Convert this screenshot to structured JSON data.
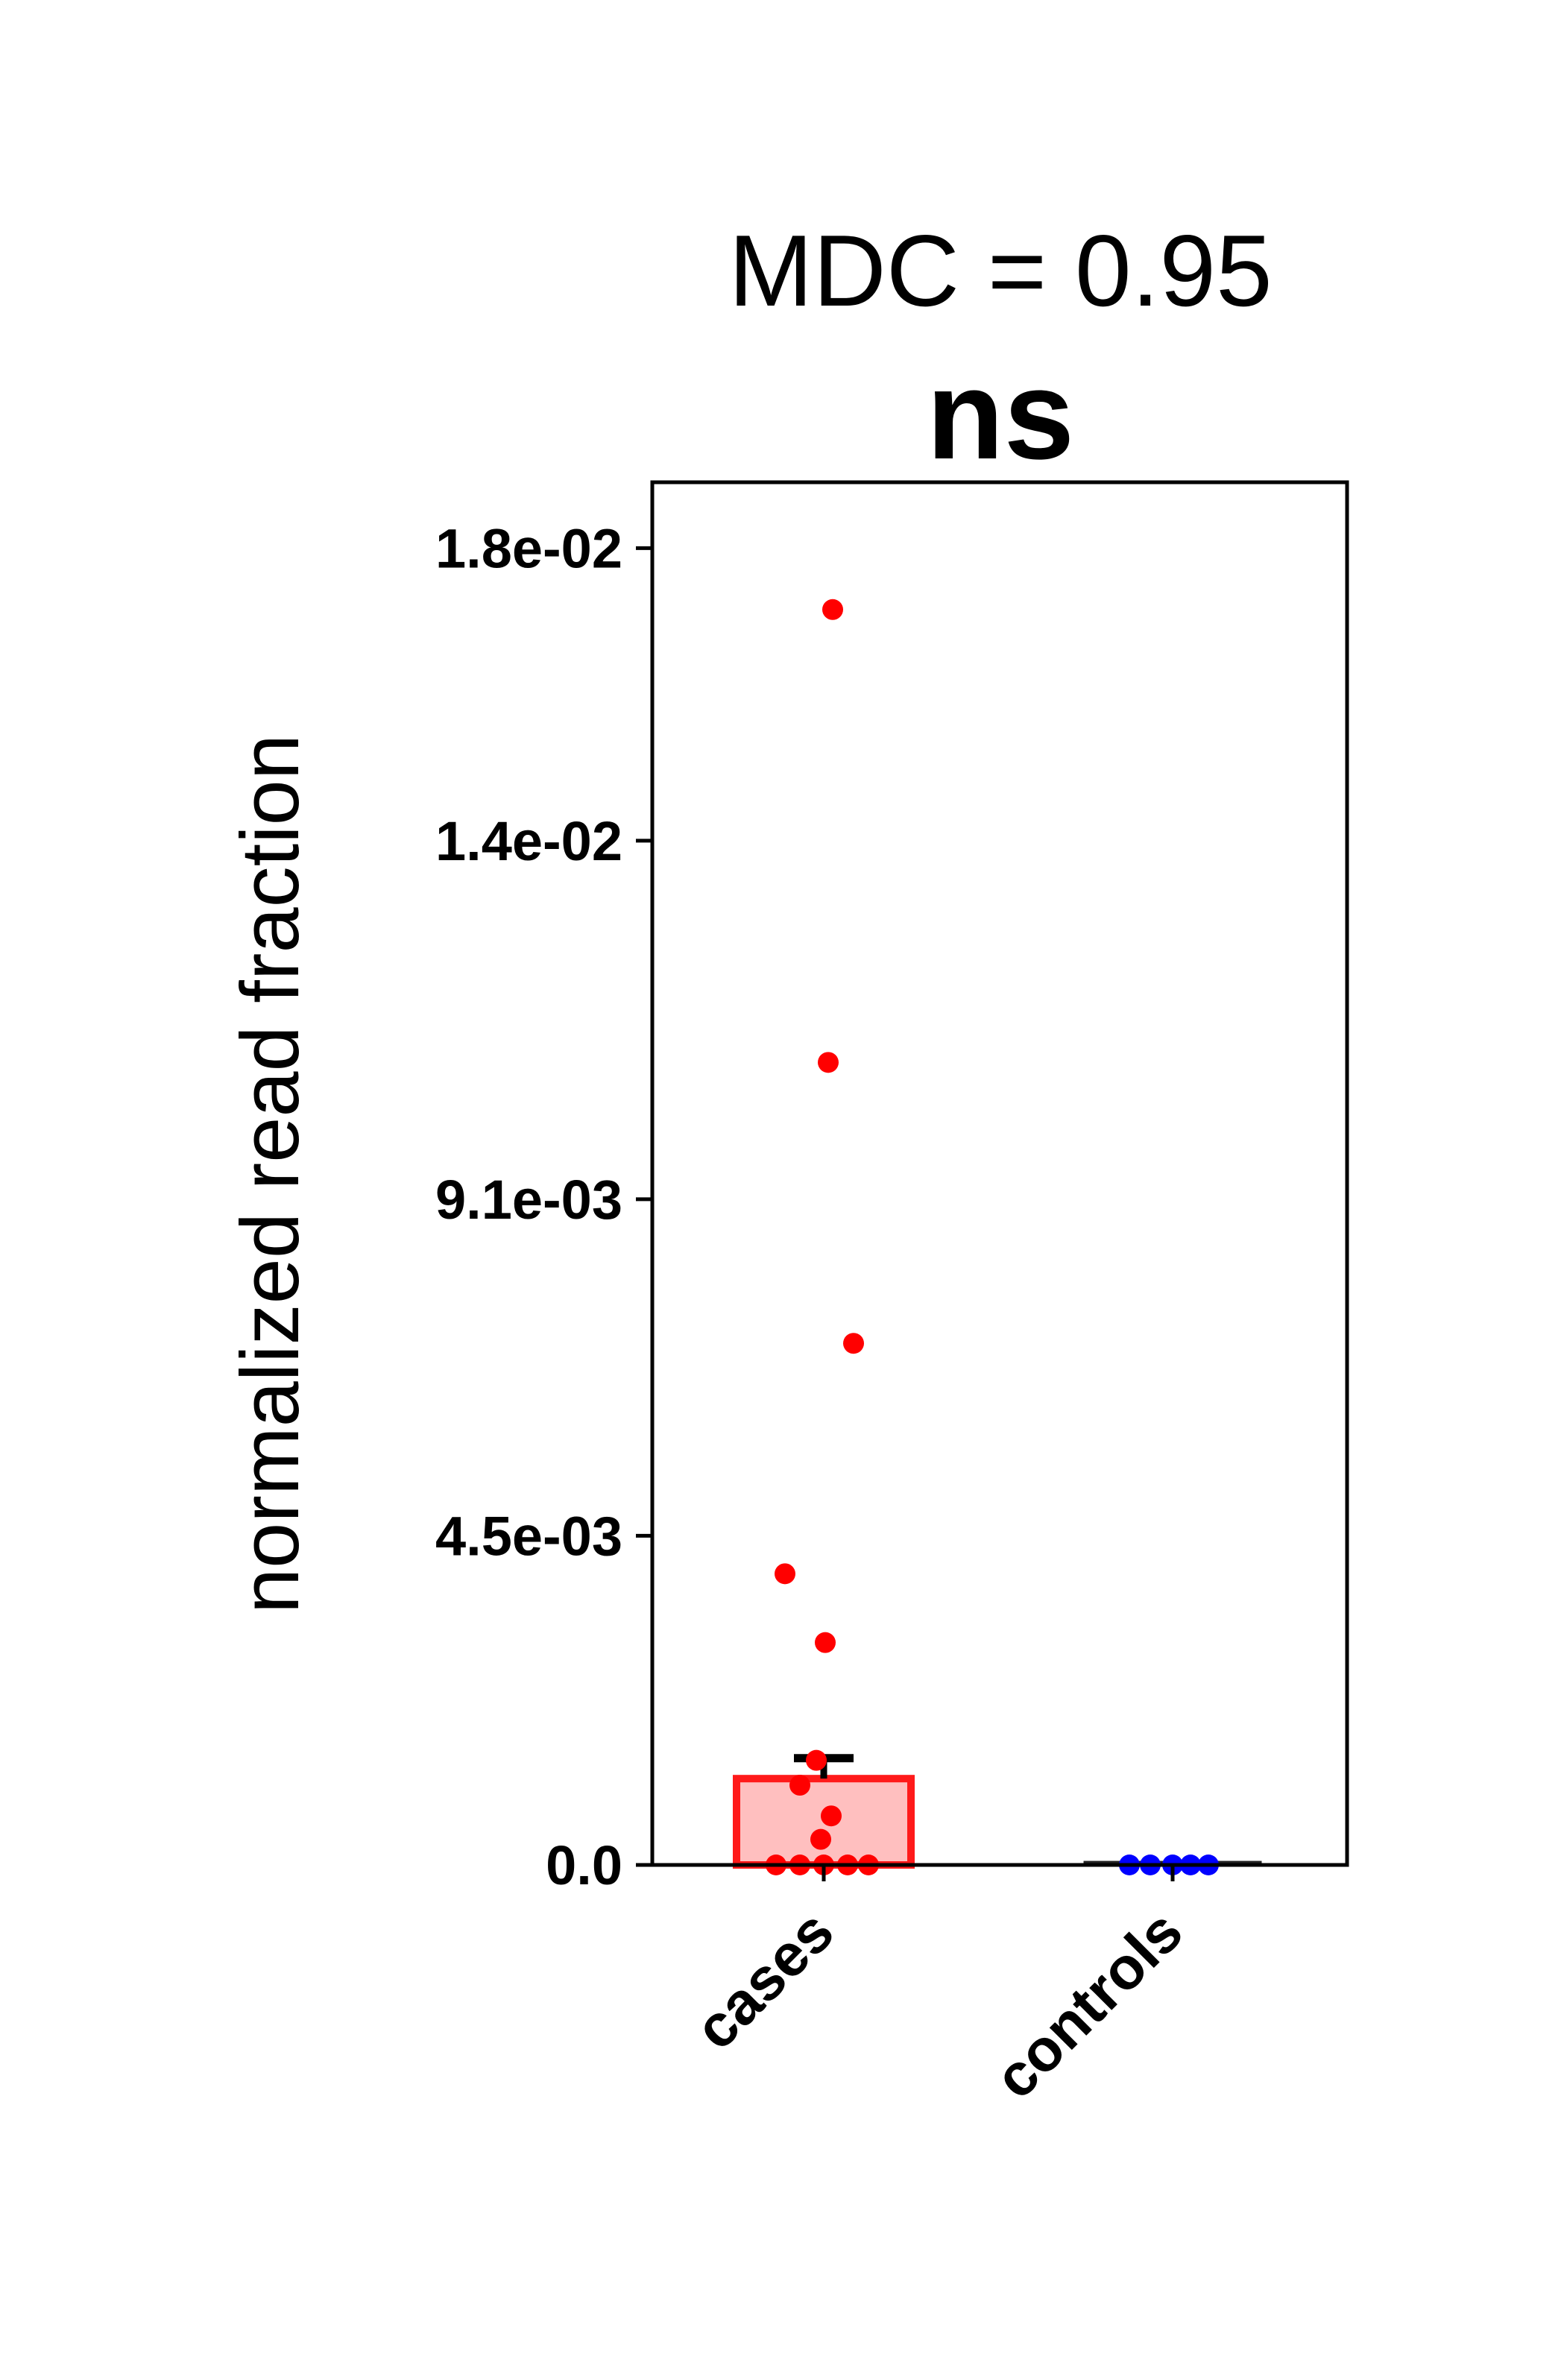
{
  "chart_data": {
    "type": "bar",
    "title": "MDC = 0.95",
    "subtitle": "ns",
    "xlabel": "",
    "ylabel": "normalized read fraction",
    "ylim": [
      0,
      0.0189
    ],
    "yticks": [
      {
        "value": 0.0,
        "label": "0.0"
      },
      {
        "value": 0.0045,
        "label": "4.5e-03"
      },
      {
        "value": 0.0091,
        "label": "9.1e-03"
      },
      {
        "value": 0.014,
        "label": "1.4e-02"
      },
      {
        "value": 0.018,
        "label": "1.8e-02"
      }
    ],
    "categories": [
      "cases",
      "controls"
    ],
    "values": [
      0.00118,
      3e-05
    ],
    "error": [
      0.00028,
      0.0
    ],
    "points": [
      [
        0.01716,
        0.01097,
        0.00713,
        0.00398,
        0.00304,
        0.00143,
        0.00109,
        0.00067,
        0.00035,
        0.0,
        0.0,
        0.0,
        0.0,
        0.0
      ],
      [
        0.0,
        0.0,
        0.0,
        0.0,
        0.0
      ]
    ],
    "colors": {
      "cases_edge": "#ff1a1a",
      "cases_fill": "#ffbfbf",
      "cases_points": "#ff0000",
      "controls_edge": "#222222",
      "controls_points": "#0000ff"
    },
    "grid": false,
    "legend": "none"
  }
}
